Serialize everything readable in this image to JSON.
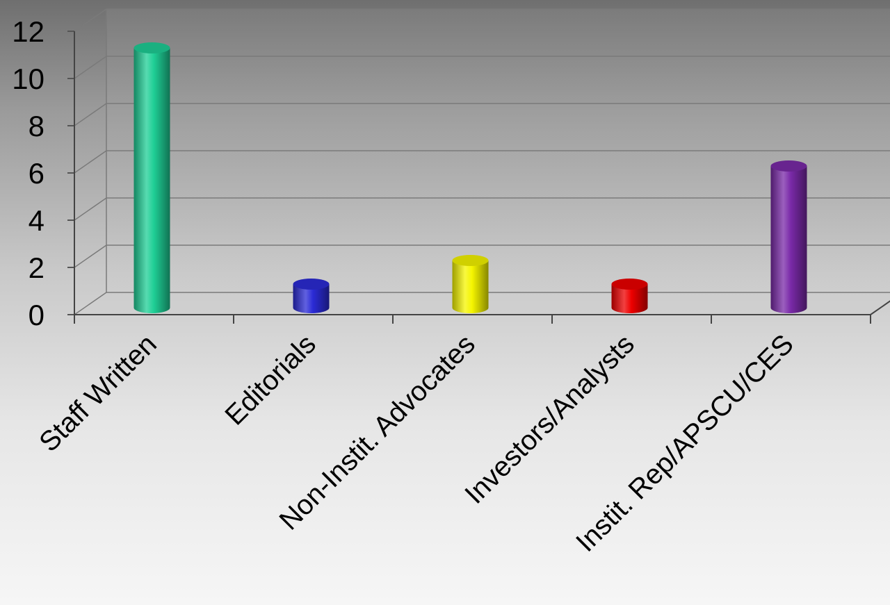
{
  "chart_data": {
    "type": "bar",
    "title": "",
    "xlabel": "",
    "ylabel": "",
    "categories": [
      "Staff Written",
      "Editorials",
      "Non-Instit. Advocates",
      "Investors/Analysts",
      "Instit. Rep/APSCU/CES"
    ],
    "values": [
      11,
      1,
      2,
      1,
      6
    ],
    "colors": [
      "#1fcf96",
      "#2b2bd6",
      "#f5f500",
      "#ee0000",
      "#7a2aa8"
    ],
    "ylim": [
      0,
      12
    ],
    "yticks": [
      0,
      2,
      4,
      6,
      8,
      10,
      12
    ],
    "grid": true,
    "style": "3d-cylinder",
    "legend": "none"
  }
}
